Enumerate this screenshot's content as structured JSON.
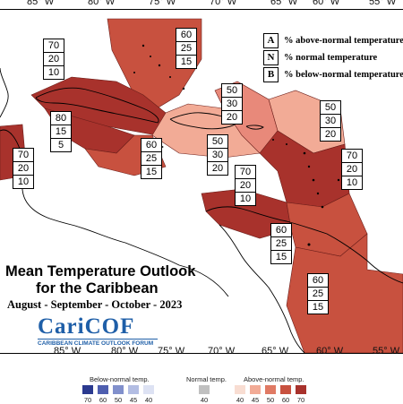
{
  "map": {
    "longitudes": [
      "85° W",
      "80° W",
      "75° W",
      "70° W",
      "65° W",
      "60° W",
      "55° W"
    ],
    "title_line1": "Mean Temperature Outlook",
    "title_line2": "for the Caribbean",
    "subtitle": "August - September - October - 2023"
  },
  "key": {
    "rows": [
      {
        "letter": "A",
        "text": "% above-normal temperature"
      },
      {
        "letter": "N",
        "text": "% normal temperature"
      },
      {
        "letter": "B",
        "text": "% below-normal temperature"
      }
    ]
  },
  "regions": [
    {
      "id": "bahamas",
      "above": "60",
      "normal": "25",
      "below": "15",
      "color": "#c8513f"
    },
    {
      "id": "cuba",
      "above": "70",
      "normal": "20",
      "below": "10",
      "color": "#a8322c"
    },
    {
      "id": "cayman",
      "above": "80",
      "normal": "15",
      "below": "5",
      "color": "#a8322c"
    },
    {
      "id": "belize",
      "above": "70",
      "normal": "20",
      "below": "10",
      "color": "#a8322c"
    },
    {
      "id": "jamaica",
      "above": "60",
      "normal": "25",
      "below": "15",
      "color": "#c8513f"
    },
    {
      "id": "hispaniola",
      "above": "50",
      "normal": "30",
      "below": "20",
      "color": "#f2ab96"
    },
    {
      "id": "atlantic-north",
      "above": "50",
      "normal": "30",
      "below": "20",
      "color": "#f2ab96"
    },
    {
      "id": "antilles",
      "above": "50",
      "normal": "30",
      "below": "20",
      "color": "#e8897a"
    },
    {
      "id": "leewards",
      "above": "70",
      "normal": "20",
      "below": "10",
      "color": "#a8322c"
    },
    {
      "id": "caribbean-south",
      "above": "70",
      "normal": "20",
      "below": "10",
      "color": "#a8322c"
    },
    {
      "id": "trinidad",
      "above": "60",
      "normal": "25",
      "below": "15",
      "color": "#c8513f"
    },
    {
      "id": "guianas",
      "above": "60",
      "normal": "25",
      "below": "15",
      "color": "#c8513f"
    }
  ],
  "logo": {
    "name": "CariCOF",
    "tagline": "CARIBBEAN CLIMATE OUTLOOK FORUM"
  },
  "scale": {
    "below_label": "Below-normal temp.",
    "normal_label": "Normal temp.",
    "above_label": "Above-normal temp.",
    "below": [
      {
        "value": "70",
        "color": "#2b3a8f"
      },
      {
        "value": "60",
        "color": "#4f5fb0"
      },
      {
        "value": "50",
        "color": "#8190cc"
      },
      {
        "value": "45",
        "color": "#b3bde3"
      },
      {
        "value": "40",
        "color": "#dde2f3"
      }
    ],
    "normal": {
      "value": "40",
      "color": "#c0c0c0"
    },
    "above": [
      {
        "value": "40",
        "color": "#f8ddd2"
      },
      {
        "value": "45",
        "color": "#f2ab96"
      },
      {
        "value": "50",
        "color": "#e07a64"
      },
      {
        "value": "60",
        "color": "#c8513f"
      },
      {
        "value": "70",
        "color": "#a8322c"
      }
    ]
  }
}
